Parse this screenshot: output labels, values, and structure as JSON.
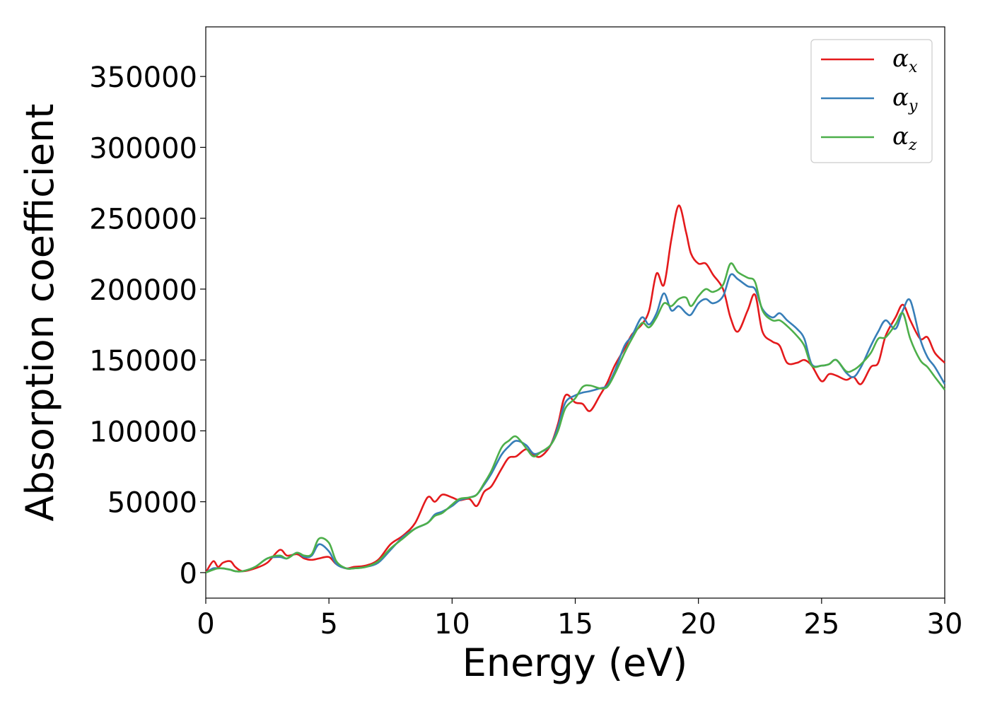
{
  "chart_data": {
    "type": "line",
    "xlabel": "Energy (eV)",
    "ylabel": "Absorption coefficient",
    "xlim": [
      0,
      30
    ],
    "ylim": [
      -18000,
      385000
    ],
    "xticks": [
      0,
      5,
      10,
      15,
      20,
      25,
      30
    ],
    "yticks": [
      0,
      50000,
      100000,
      150000,
      200000,
      250000,
      300000,
      350000
    ],
    "grid": false,
    "legend_position": "top-right",
    "x": [
      0,
      0.3,
      0.5,
      0.7,
      1.0,
      1.2,
      1.5,
      2.0,
      2.5,
      3.0,
      3.3,
      3.7,
      4.0,
      4.3,
      4.6,
      5.0,
      5.3,
      5.7,
      6.0,
      6.5,
      7.0,
      7.5,
      8.0,
      8.5,
      9.0,
      9.3,
      9.6,
      10.0,
      10.3,
      10.7,
      11.0,
      11.3,
      11.6,
      12.0,
      12.3,
      12.6,
      13.0,
      13.3,
      13.6,
      14.0,
      14.3,
      14.6,
      15.0,
      15.3,
      15.6,
      16.0,
      16.3,
      16.6,
      17.0,
      17.3,
      17.7,
      18.0,
      18.3,
      18.6,
      18.9,
      19.2,
      19.5,
      19.7,
      20.0,
      20.3,
      20.6,
      21.0,
      21.3,
      21.6,
      22.0,
      22.3,
      22.6,
      23.0,
      23.3,
      23.6,
      24.0,
      24.3,
      24.6,
      25.0,
      25.3,
      25.6,
      26.0,
      26.3,
      26.6,
      27.0,
      27.3,
      27.6,
      28.0,
      28.3,
      28.6,
      29.0,
      29.3,
      29.6,
      30.0
    ],
    "series": [
      {
        "name": "α",
        "subscript": "x",
        "color": "#e41a1c",
        "values": [
          0,
          8000,
          4000,
          7000,
          8000,
          4000,
          1000,
          3000,
          7000,
          16000,
          12000,
          13000,
          10000,
          9000,
          10000,
          11000,
          6000,
          3000,
          4000,
          5000,
          9000,
          20000,
          26000,
          35000,
          53000,
          50000,
          55000,
          53000,
          51000,
          52000,
          47000,
          57000,
          61000,
          73000,
          81000,
          82000,
          87000,
          83000,
          82000,
          90000,
          105000,
          125000,
          120000,
          119000,
          114000,
          125000,
          134000,
          146000,
          158000,
          168000,
          175000,
          185000,
          211000,
          203000,
          235000,
          259000,
          240000,
          225000,
          218000,
          218000,
          210000,
          200000,
          180000,
          170000,
          185000,
          196000,
          170000,
          163000,
          160000,
          148000,
          148000,
          150000,
          146000,
          135000,
          140000,
          139000,
          136000,
          138000,
          133000,
          145000,
          148000,
          167000,
          180000,
          189000,
          178000,
          165000,
          166000,
          155000,
          148000
        ]
      },
      {
        "name": "α",
        "subscript": "y",
        "color": "#377eb8",
        "values": [
          0,
          3000,
          3000,
          3000,
          2000,
          1000,
          1000,
          4000,
          10000,
          11000,
          10000,
          14000,
          11000,
          12000,
          20000,
          15000,
          6000,
          3000,
          3000,
          4000,
          7000,
          16000,
          25000,
          31000,
          35000,
          41000,
          43000,
          47000,
          51000,
          53000,
          55000,
          62000,
          70000,
          83000,
          89000,
          93000,
          90000,
          84000,
          85000,
          90000,
          103000,
          120000,
          125000,
          127000,
          128000,
          130000,
          132000,
          142000,
          160000,
          167000,
          180000,
          175000,
          183000,
          197000,
          185000,
          188000,
          183000,
          182000,
          190000,
          193000,
          190000,
          195000,
          210000,
          207000,
          202000,
          200000,
          186000,
          180000,
          183000,
          178000,
          172000,
          165000,
          147000,
          146000,
          147000,
          150000,
          141000,
          138000,
          145000,
          160000,
          170000,
          178000,
          172000,
          185000,
          192000,
          165000,
          152000,
          145000,
          133000
        ]
      },
      {
        "name": "α",
        "subscript": "z",
        "color": "#4daf4a",
        "values": [
          0,
          2000,
          3000,
          3000,
          2000,
          1000,
          1000,
          4000,
          10000,
          12000,
          10000,
          14000,
          12000,
          13000,
          24000,
          21000,
          8000,
          3000,
          3000,
          4000,
          8000,
          17000,
          24000,
          31000,
          35000,
          40000,
          42000,
          48000,
          52000,
          53000,
          55000,
          63000,
          72000,
          88000,
          93000,
          96000,
          88000,
          82000,
          85000,
          90000,
          100000,
          116000,
          123000,
          131000,
          132000,
          130000,
          131000,
          140000,
          155000,
          165000,
          176000,
          173000,
          180000,
          190000,
          188000,
          193000,
          194000,
          188000,
          195000,
          200000,
          198000,
          203000,
          218000,
          212000,
          208000,
          205000,
          185000,
          178000,
          178000,
          174000,
          167000,
          160000,
          146000,
          146000,
          147000,
          150000,
          142000,
          143000,
          147000,
          155000,
          165000,
          166000,
          175000,
          183000,
          165000,
          150000,
          145000,
          138000,
          129000
        ]
      }
    ]
  }
}
